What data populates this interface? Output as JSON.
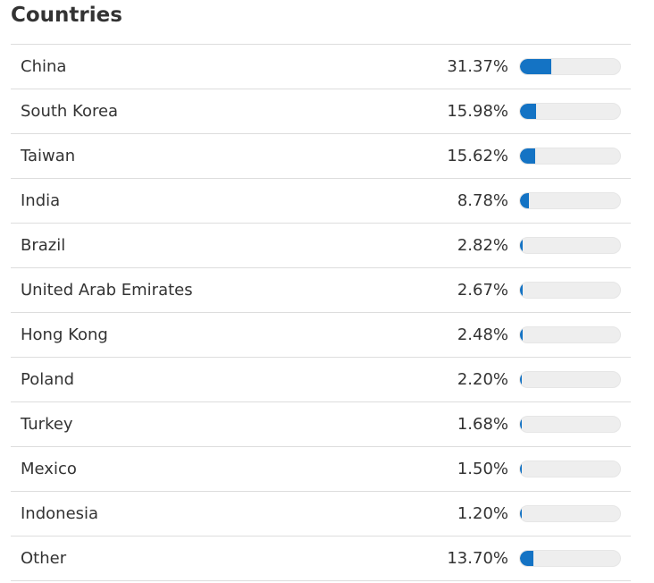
{
  "title": "Countries",
  "colors": {
    "bar": "#1473c4",
    "track": "#eeeeee"
  },
  "chart_data": {
    "type": "bar",
    "title": "Countries",
    "categories": [
      "China",
      "South Korea",
      "Taiwan",
      "India",
      "Brazil",
      "United Arab Emirates",
      "Hong Kong",
      "Poland",
      "Turkey",
      "Mexico",
      "Indonesia",
      "Other"
    ],
    "values": [
      31.37,
      15.98,
      15.62,
      8.78,
      2.82,
      2.67,
      2.48,
      2.2,
      1.68,
      1.5,
      1.2,
      13.7
    ],
    "labels": [
      "31.37%",
      "15.98%",
      "15.62%",
      "8.78%",
      "2.82%",
      "2.67%",
      "2.48%",
      "2.20%",
      "1.68%",
      "1.50%",
      "1.20%",
      "13.70%"
    ],
    "xlim": [
      0,
      100
    ]
  }
}
